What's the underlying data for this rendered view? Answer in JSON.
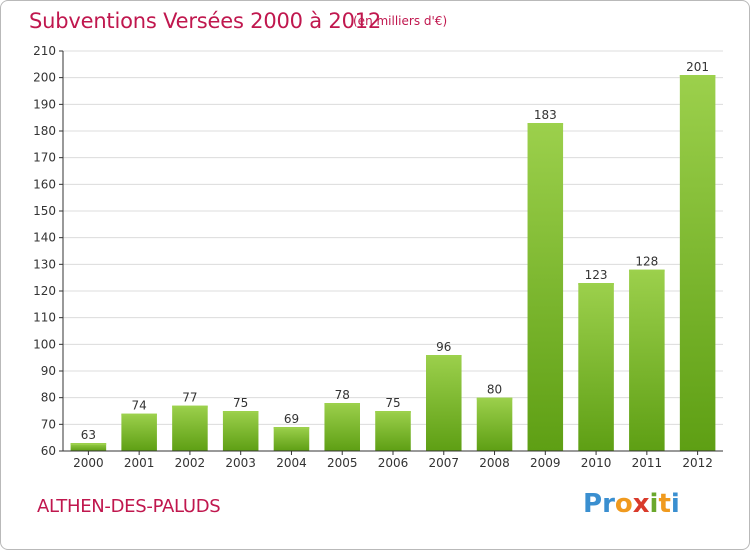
{
  "chart_data": {
    "type": "bar",
    "title": "Subventions Versées 2000 à 2012",
    "subtitle": "(en milliers d'€)",
    "categories": [
      "2000",
      "2001",
      "2002",
      "2003",
      "2004",
      "2005",
      "2006",
      "2007",
      "2008",
      "2009",
      "2010",
      "2011",
      "2012"
    ],
    "values": [
      63,
      74,
      77,
      75,
      69,
      78,
      75,
      96,
      80,
      183,
      123,
      128,
      201
    ],
    "ylim": [
      60,
      210
    ],
    "yticks": [
      60,
      70,
      80,
      90,
      100,
      110,
      120,
      130,
      140,
      150,
      160,
      170,
      180,
      190,
      200,
      210
    ],
    "grid": true,
    "colors": {
      "bar_top": "#9cd04c",
      "bar_bottom": "#5e9f14",
      "grid": "#dcdcdc",
      "axis": "#333333"
    }
  },
  "footer": {
    "commune": "ALTHEN-DES-PALUDS",
    "logo_letters": [
      {
        "char": "P",
        "color": "#3a8fd0"
      },
      {
        "char": "r",
        "color": "#3a8fd0"
      },
      {
        "char": "o",
        "color": "#f09a1e"
      },
      {
        "char": "x",
        "color": "#d93a2b"
      },
      {
        "char": "i",
        "color": "#6aa82c"
      },
      {
        "char": "t",
        "color": "#f09a1e"
      },
      {
        "char": "i",
        "color": "#3a8fd0"
      }
    ]
  }
}
